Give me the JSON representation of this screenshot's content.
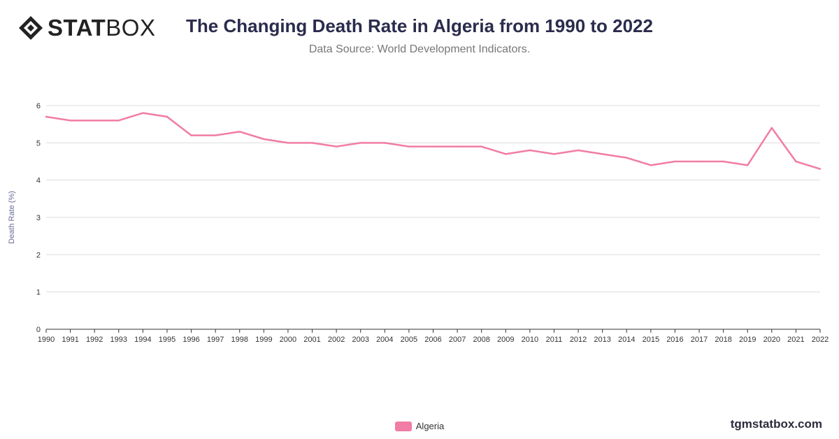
{
  "logo": {
    "text_bold": "STAT",
    "text_light": "BOX"
  },
  "header": {
    "title": "The Changing Death Rate in Algeria from 1990 to 2022",
    "subtitle": "Data Source: World Development Indicators."
  },
  "footer": {
    "site": "tgmstatbox.com"
  },
  "colors": {
    "series": "#f17ca6",
    "grid": "#dddddd",
    "axis": "#333333",
    "ylabel": "#6a6a9a"
  },
  "chart_data": {
    "type": "line",
    "title": "The Changing Death Rate in Algeria from 1990 to 2022",
    "subtitle": "Data Source: World Development Indicators.",
    "xlabel": "",
    "ylabel": "Death Rate (%)",
    "ylim": [
      0,
      6
    ],
    "yticks": [
      0,
      1,
      2,
      3,
      4,
      5,
      6
    ],
    "grid": true,
    "legend_position": "bottom",
    "categories": [
      "1990",
      "1991",
      "1992",
      "1993",
      "1994",
      "1995",
      "1996",
      "1997",
      "1998",
      "1999",
      "2000",
      "2001",
      "2002",
      "2003",
      "2004",
      "2005",
      "2006",
      "2007",
      "2008",
      "2009",
      "2010",
      "2011",
      "2012",
      "2013",
      "2014",
      "2015",
      "2016",
      "2017",
      "2018",
      "2019",
      "2020",
      "2021",
      "2022"
    ],
    "series": [
      {
        "name": "Algeria",
        "values": [
          5.7,
          5.6,
          5.6,
          5.6,
          5.8,
          5.7,
          5.2,
          5.2,
          5.3,
          5.1,
          5.0,
          5.0,
          4.9,
          5.0,
          5.0,
          4.9,
          4.9,
          4.9,
          4.9,
          4.7,
          4.8,
          4.7,
          4.8,
          4.7,
          4.6,
          4.4,
          4.5,
          4.5,
          4.5,
          4.4,
          5.4,
          4.5,
          4.3
        ]
      }
    ]
  }
}
